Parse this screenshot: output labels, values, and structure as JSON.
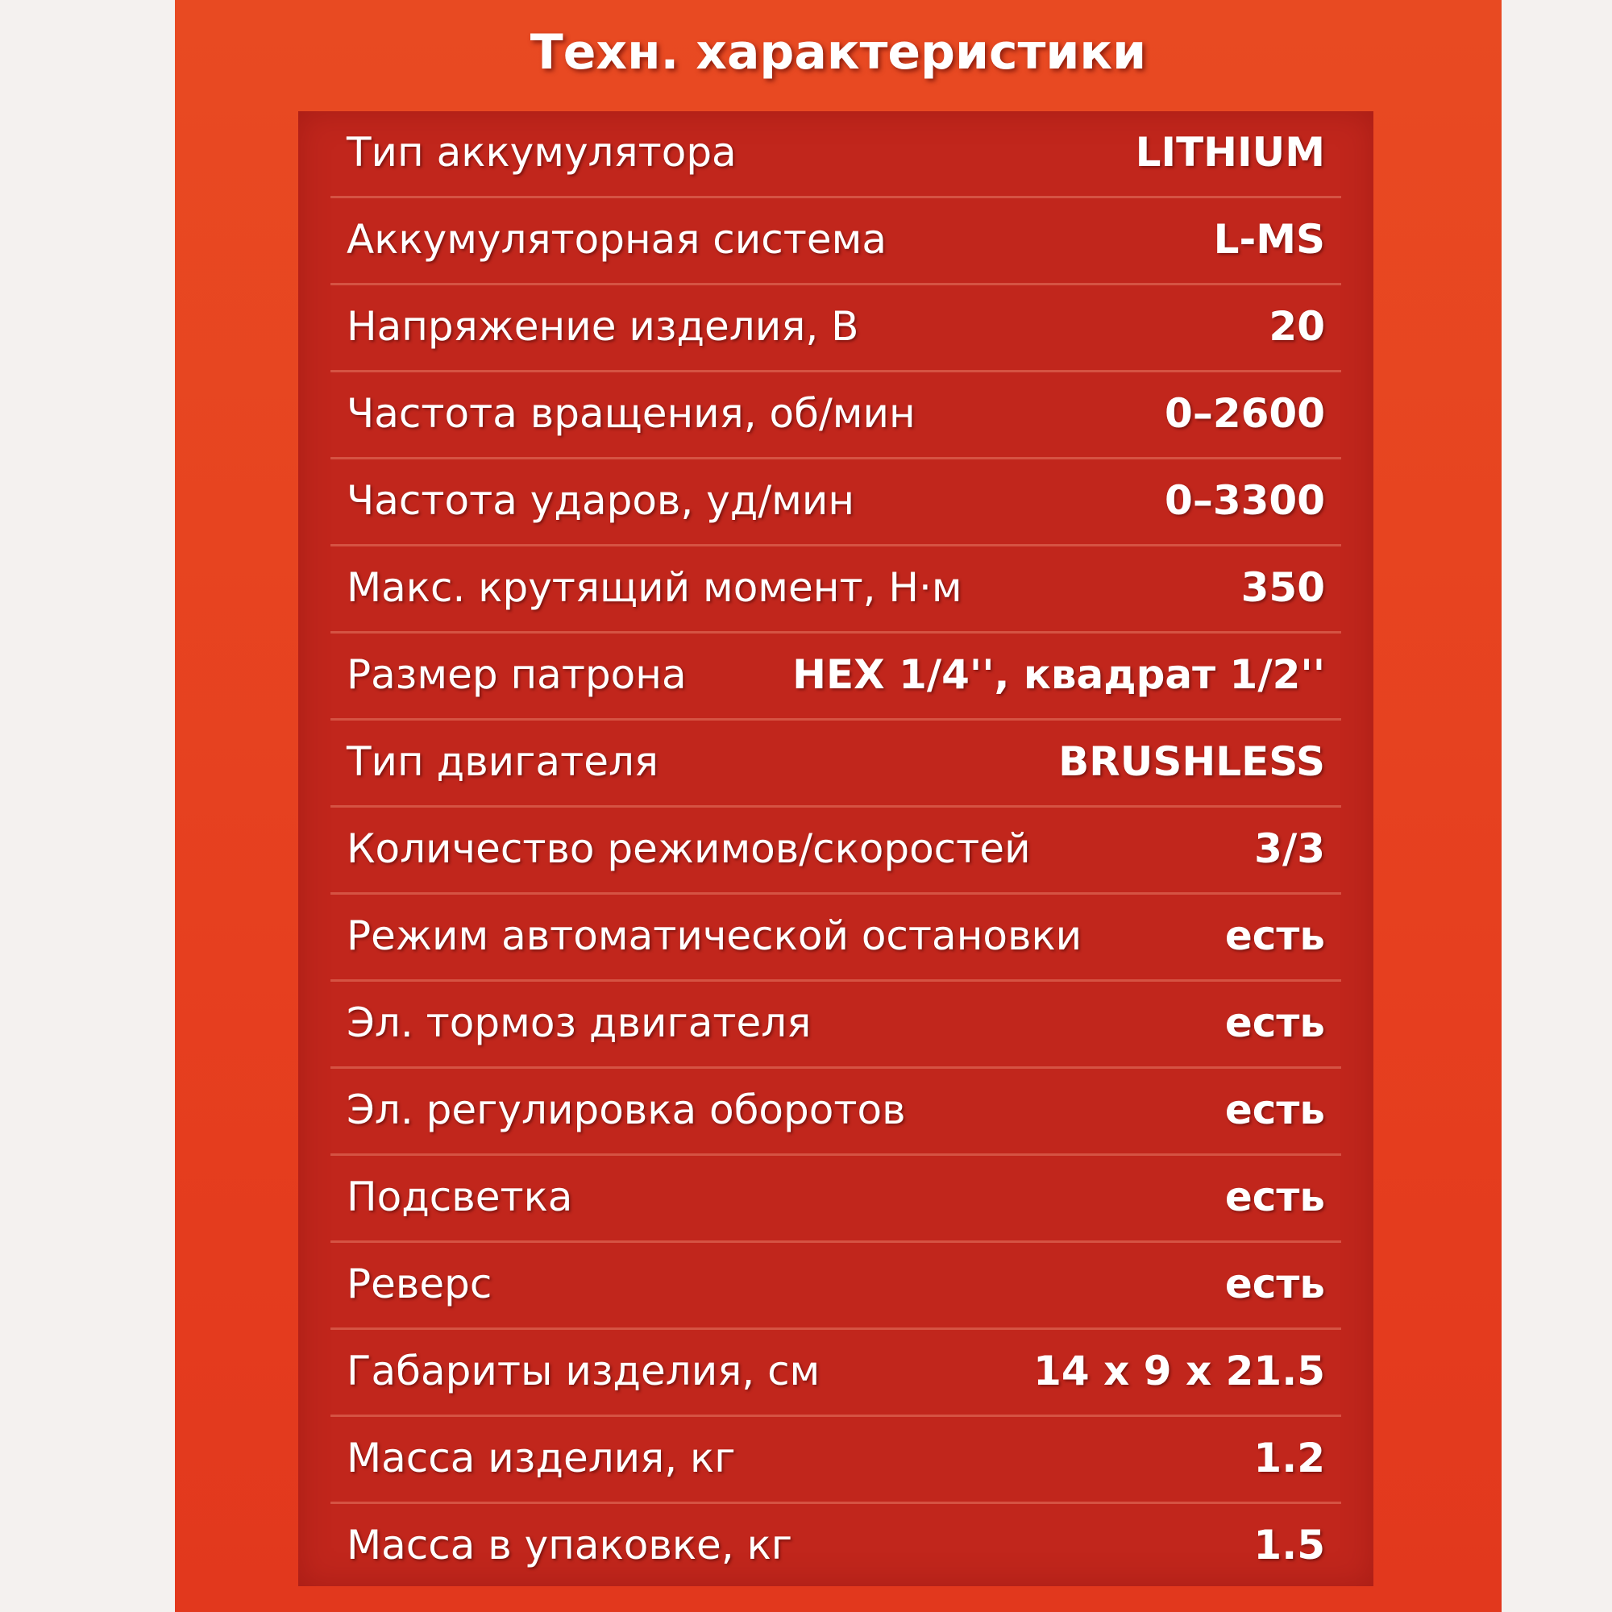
{
  "header": {
    "title": "Техн. характеристики"
  },
  "table": {
    "rows": [
      {
        "label": "Тип аккумулятора",
        "value": "LITHIUM"
      },
      {
        "label": "Аккумуляторная система",
        "value": "L-MS"
      },
      {
        "label": "Напряжение изделия, В",
        "value": "20"
      },
      {
        "label": "Частота вращения, об/мин",
        "value": "0–2600"
      },
      {
        "label": "Частота ударов, уд/мин",
        "value": "0–3300"
      },
      {
        "label": "Макс. крутящий момент, Н·м",
        "value": "350"
      },
      {
        "label": "Размер патрона",
        "value": "HEX 1/4'', квадрат 1/2''"
      },
      {
        "label": "Тип двигателя",
        "value": "BRUSHLESS"
      },
      {
        "label": "Количество режимов/скоростей",
        "value": "3/3"
      },
      {
        "label": "Режим автоматической остановки",
        "value": "есть"
      },
      {
        "label": "Эл. тормоз двигателя",
        "value": "есть"
      },
      {
        "label": "Эл. регулировка оборотов",
        "value": "есть"
      },
      {
        "label": "Подсветка",
        "value": "есть"
      },
      {
        "label": "Реверс",
        "value": "есть"
      },
      {
        "label": "Габариты изделия, см",
        "value": "14 x 9 x 21.5"
      },
      {
        "label": "Масса изделия, кг",
        "value": "1.2"
      },
      {
        "label": "Масса в упаковке, кг",
        "value": "1.5"
      }
    ]
  }
}
